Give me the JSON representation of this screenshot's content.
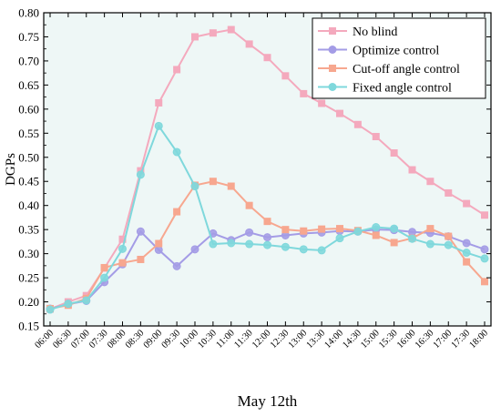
{
  "chart_data": {
    "type": "line",
    "xlabel": "May 12th",
    "ylabel": "DGPs",
    "ylim": [
      0.15,
      0.8
    ],
    "yticks": [
      "0.15",
      "0.20",
      "0.25",
      "0.30",
      "0.35",
      "0.40",
      "0.45",
      "0.50",
      "0.55",
      "0.60",
      "0.65",
      "0.70",
      "0.75",
      "0.80"
    ],
    "grid": false,
    "legend_position": "top-right",
    "plot_background": "#eef7f6",
    "x": [
      "06:00",
      "06:30",
      "07:00",
      "07:30",
      "08:00",
      "08:30",
      "09:00",
      "09:30",
      "10:00",
      "10:30",
      "11:00",
      "11:30",
      "12:00",
      "12:30",
      "13:00",
      "13:30",
      "14:00",
      "14:30",
      "15:00",
      "15:30",
      "16:00",
      "16:30",
      "17:00",
      "17:30",
      "18:00"
    ],
    "series": [
      {
        "name": "No blind",
        "color": "#f4a9bd",
        "marker": "square",
        "values": [
          0.185,
          0.2,
          0.213,
          0.27,
          0.33,
          0.472,
          0.613,
          0.682,
          0.75,
          0.758,
          0.765,
          0.735,
          0.707,
          0.669,
          0.632,
          0.612,
          0.591,
          0.568,
          0.543,
          0.509,
          0.474,
          0.45,
          0.426,
          0.404,
          0.38
        ]
      },
      {
        "name": "Optimize control",
        "color": "#a49ce6",
        "marker": "circle",
        "values": [
          0.186,
          0.195,
          0.202,
          0.241,
          0.278,
          0.346,
          0.308,
          0.274,
          0.309,
          0.342,
          0.328,
          0.344,
          0.334,
          0.338,
          0.342,
          0.344,
          0.347,
          0.346,
          0.35,
          0.349,
          0.345,
          0.343,
          0.336,
          0.322,
          0.309
        ]
      },
      {
        "name": "Cut-off angle control",
        "color": "#f7a78f",
        "marker": "square",
        "values": [
          0.186,
          0.193,
          0.207,
          0.271,
          0.281,
          0.288,
          0.321,
          0.387,
          0.442,
          0.45,
          0.44,
          0.4,
          0.367,
          0.35,
          0.347,
          0.351,
          0.352,
          0.348,
          0.338,
          0.323,
          0.332,
          0.352,
          0.336,
          0.283,
          0.242
        ]
      },
      {
        "name": "Fixed angle control",
        "color": "#7fd8dc",
        "marker": "circle",
        "values": [
          0.184,
          0.196,
          0.203,
          0.25,
          0.31,
          0.464,
          0.565,
          0.511,
          0.44,
          0.32,
          0.322,
          0.32,
          0.318,
          0.314,
          0.309,
          0.307,
          0.332,
          0.346,
          0.355,
          0.352,
          0.331,
          0.32,
          0.318,
          0.302,
          0.29
        ]
      }
    ]
  }
}
